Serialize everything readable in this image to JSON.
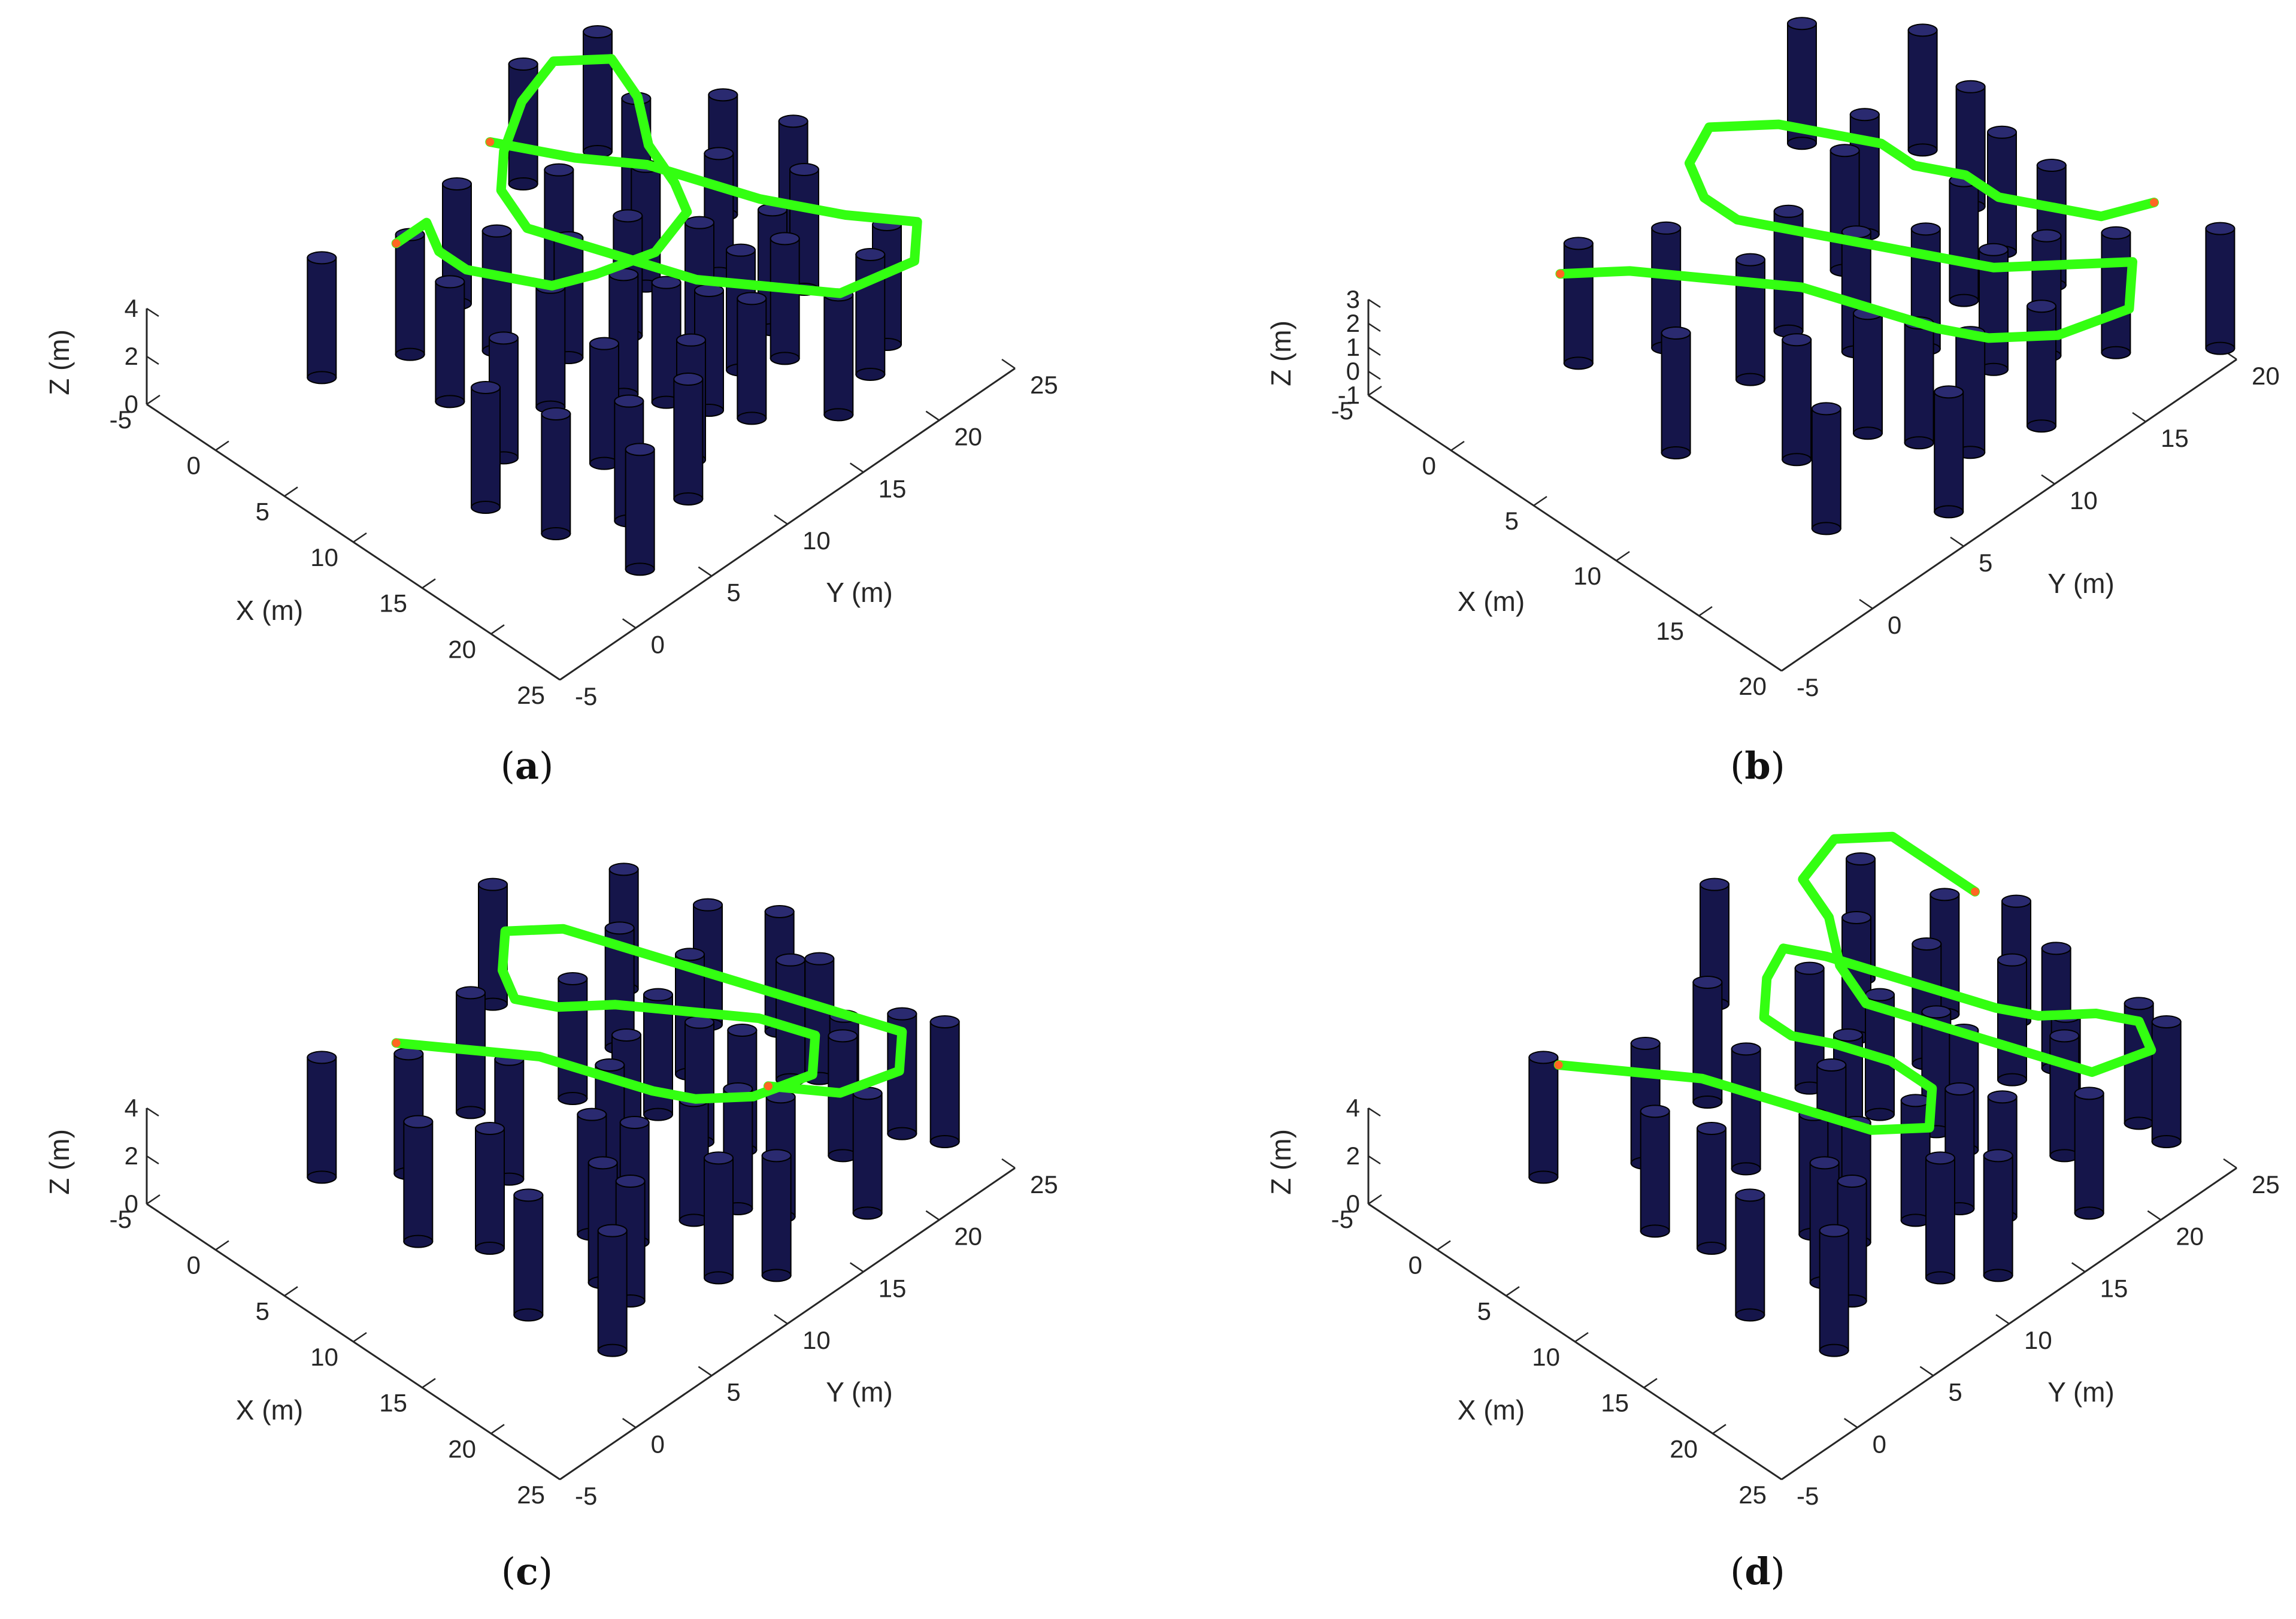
{
  "colors": {
    "pillar_fill": "#15154a",
    "pillar_stripe": "#2a2a70",
    "path_main": "#33ff11",
    "path_cool": "#22ddcc",
    "path_hot": "#ff6622",
    "axis": "#262626"
  },
  "chart_data": [
    {
      "panel": "a",
      "type": "3d-scatter-line",
      "caption_letter": "a",
      "xlabel": "X (m)",
      "ylabel": "Y (m)",
      "zlabel": "Z (m)",
      "xlim": [
        -5,
        25
      ],
      "ylim": [
        -5,
        25
      ],
      "zlim": [
        0,
        4
      ],
      "xticks": [
        "-5",
        "0",
        "5",
        "10",
        "15",
        "20",
        "25"
      ],
      "yticks": [
        "-5",
        "0",
        "5",
        "10",
        "15",
        "20",
        "25"
      ],
      "zticks": [
        "0",
        "2",
        "4"
      ],
      "obstacles_xy": [
        [
          0,
          2
        ],
        [
          2,
          6
        ],
        [
          -3,
          18
        ],
        [
          6,
          5
        ],
        [
          4,
          14
        ],
        [
          -2,
          22
        ],
        [
          1,
          10
        ],
        [
          3,
          20
        ],
        [
          7,
          17
        ],
        [
          8,
          11
        ],
        [
          10,
          8
        ],
        [
          9,
          20
        ],
        [
          12,
          16
        ],
        [
          11,
          4
        ],
        [
          13,
          22
        ],
        [
          14,
          12
        ],
        [
          15,
          7
        ],
        [
          16,
          18
        ],
        [
          17,
          2
        ],
        [
          18,
          14
        ],
        [
          19,
          22
        ],
        [
          20,
          8
        ],
        [
          21,
          17
        ],
        [
          22,
          3
        ],
        [
          14,
          19
        ],
        [
          6,
          23
        ],
        [
          10,
          24
        ],
        [
          5,
          9
        ],
        [
          12,
          11
        ],
        [
          16,
          13
        ],
        [
          18,
          10
        ],
        [
          20,
          20
        ],
        [
          13,
          1
        ],
        [
          9,
          14
        ],
        [
          15,
          16
        ],
        [
          19,
          5
        ]
      ],
      "path_xyz": [
        [
          -1,
          14,
          2
        ],
        [
          3,
          16,
          2
        ],
        [
          6,
          18,
          2
        ],
        [
          9,
          19,
          2
        ],
        [
          12,
          20,
          2
        ],
        [
          14,
          21,
          2
        ],
        [
          16,
          22,
          2
        ],
        [
          19,
          24,
          2
        ],
        [
          21,
          22,
          2
        ],
        [
          20,
          18,
          2
        ],
        [
          17,
          16,
          2
        ],
        [
          14,
          14,
          2
        ],
        [
          11,
          13,
          2
        ],
        [
          8,
          12,
          2
        ],
        [
          5,
          11,
          2
        ],
        [
          2,
          12,
          2
        ],
        [
          0,
          14,
          2
        ],
        [
          -2,
          17,
          2
        ],
        [
          -3,
          20,
          2
        ],
        [
          -1,
          22,
          2
        ],
        [
          2,
          21,
          2
        ],
        [
          5,
          19,
          2
        ],
        [
          8,
          18,
          2
        ],
        [
          10,
          17,
          2
        ],
        [
          11,
          14,
          2
        ],
        [
          10,
          11,
          2
        ],
        [
          9,
          9,
          2
        ],
        [
          7,
          8,
          2
        ],
        [
          5,
          7,
          2
        ],
        [
          3,
          7,
          2
        ],
        [
          1,
          8,
          2
        ],
        [
          1,
          6,
          2
        ]
      ]
    },
    {
      "panel": "b",
      "type": "3d-scatter-line",
      "caption_letter": "b",
      "xlabel": "X (m)",
      "ylabel": "Y (m)",
      "zlabel": "Z (m)",
      "xlim": [
        -5,
        20
      ],
      "ylim": [
        -5,
        20
      ],
      "zlim": [
        -1,
        3
      ],
      "xticks": [
        "-5",
        "0",
        "5",
        "10",
        "15",
        "20"
      ],
      "yticks": [
        "-5",
        "0",
        "5",
        "10",
        "15",
        "20"
      ],
      "zticks": [
        "-1",
        "0",
        "1",
        "2",
        "3"
      ],
      "obstacles_xy": [
        [
          0,
          2
        ],
        [
          2,
          5
        ],
        [
          -3,
          17
        ],
        [
          5,
          9
        ],
        [
          4,
          13
        ],
        [
          1,
          20
        ],
        [
          6,
          6
        ],
        [
          8,
          10
        ],
        [
          9,
          15
        ],
        [
          11,
          4
        ],
        [
          11,
          18
        ],
        [
          13,
          13
        ],
        [
          14,
          8
        ],
        [
          15,
          2
        ],
        [
          16,
          17
        ],
        [
          17,
          12
        ],
        [
          18,
          6
        ],
        [
          19,
          20
        ],
        [
          7,
          1
        ],
        [
          10,
          12
        ],
        [
          12,
          7
        ],
        [
          3,
          15
        ],
        [
          14,
          15
        ],
        [
          8,
          18
        ],
        [
          16,
          9
        ],
        [
          5,
          19
        ]
      ],
      "path_xyz": [
        [
          0,
          1,
          1
        ],
        [
          2,
          3,
          1
        ],
        [
          5,
          5,
          1
        ],
        [
          8,
          7,
          1
        ],
        [
          11,
          8,
          1
        ],
        [
          14,
          9,
          1
        ],
        [
          16,
          10,
          1
        ],
        [
          18,
          12,
          1
        ],
        [
          19,
          15,
          1
        ],
        [
          17,
          17,
          1
        ],
        [
          15,
          15,
          1
        ],
        [
          13,
          13,
          1
        ],
        [
          11,
          12,
          1
        ],
        [
          9,
          11,
          1
        ],
        [
          7,
          10,
          1
        ],
        [
          5,
          9,
          1
        ],
        [
          3,
          8,
          1
        ],
        [
          1,
          8,
          1
        ],
        [
          -1,
          9,
          1
        ],
        [
          -2,
          11,
          1
        ],
        [
          0,
          13,
          1
        ],
        [
          2,
          14,
          1
        ],
        [
          4,
          15,
          1
        ],
        [
          6,
          15,
          1
        ],
        [
          8,
          16,
          1
        ],
        [
          10,
          16,
          1
        ],
        [
          12,
          17,
          1
        ],
        [
          14,
          18,
          1
        ],
        [
          15,
          20,
          1
        ]
      ]
    },
    {
      "panel": "c",
      "type": "3d-scatter-line",
      "caption_letter": "c",
      "xlabel": "X (m)",
      "ylabel": "Y (m)",
      "zlabel": "Z (m)",
      "xlim": [
        -5,
        25
      ],
      "ylim": [
        -5,
        25
      ],
      "zlim": [
        0,
        4
      ],
      "xticks": [
        "-5",
        "0",
        "5",
        "10",
        "15",
        "20",
        "25"
      ],
      "yticks": [
        "-5",
        "0",
        "5",
        "10",
        "15",
        "20",
        "25"
      ],
      "zticks": [
        "0",
        "2",
        "4"
      ],
      "obstacles_xy": [
        [
          0,
          2
        ],
        [
          3,
          5
        ],
        [
          -3,
          16
        ],
        [
          2,
          10
        ],
        [
          5,
          14
        ],
        [
          7,
          8
        ],
        [
          8,
          19
        ],
        [
          10,
          4
        ],
        [
          10,
          13
        ],
        [
          12,
          22
        ],
        [
          13,
          8
        ],
        [
          14,
          17
        ],
        [
          15,
          2
        ],
        [
          16,
          12
        ],
        [
          17,
          21
        ],
        [
          18,
          6
        ],
        [
          19,
          15
        ],
        [
          20,
          10
        ],
        [
          21,
          24
        ],
        [
          22,
          18
        ],
        [
          6,
          22
        ],
        [
          9,
          24
        ],
        [
          12,
          16
        ],
        [
          15,
          9
        ],
        [
          4,
          18
        ],
        [
          11,
          11
        ],
        [
          18,
          20
        ],
        [
          20,
          3
        ],
        [
          1,
          21
        ],
        [
          13,
          23
        ],
        [
          17,
          14
        ],
        [
          22,
          12
        ],
        [
          7,
          2
        ],
        [
          16,
          6
        ],
        [
          9,
          16
        ],
        [
          19,
          23
        ]
      ],
      "path_xyz": [
        [
          1,
          6,
          2
        ],
        [
          4,
          8,
          2
        ],
        [
          7,
          10,
          2
        ],
        [
          10,
          11,
          2
        ],
        [
          13,
          12,
          2
        ],
        [
          15,
          13,
          2
        ],
        [
          17,
          15,
          2
        ],
        [
          18,
          18,
          2
        ],
        [
          16,
          20,
          2
        ],
        [
          13,
          19,
          2
        ],
        [
          10,
          17,
          2
        ],
        [
          7,
          15,
          2
        ],
        [
          5,
          13,
          2
        ],
        [
          3,
          12,
          2
        ],
        [
          1,
          13,
          2
        ],
        [
          -1,
          15,
          2
        ],
        [
          1,
          17,
          2
        ],
        [
          4,
          18,
          2
        ],
        [
          7,
          19,
          2
        ],
        [
          10,
          20,
          2
        ],
        [
          13,
          21,
          2
        ],
        [
          16,
          22,
          2
        ],
        [
          19,
          23,
          2
        ],
        [
          21,
          21,
          2
        ],
        [
          20,
          18,
          2
        ],
        [
          17,
          16,
          2
        ]
      ]
    },
    {
      "panel": "d",
      "type": "3d-scatter-line",
      "caption_letter": "d",
      "xlabel": "X (m)",
      "ylabel": "Y (m)",
      "zlabel": "Z (m)",
      "xlim": [
        -5,
        25
      ],
      "ylim": [
        -5,
        25
      ],
      "zlim": [
        0,
        4
      ],
      "xticks": [
        "-5",
        "0",
        "5",
        "10",
        "15",
        "20",
        "25"
      ],
      "yticks": [
        "-5",
        "0",
        "5",
        "10",
        "15",
        "20",
        "25"
      ],
      "zticks": [
        "0",
        "2",
        "4"
      ],
      "obstacles_xy": [
        [
          0,
          2
        ],
        [
          3,
          6
        ],
        [
          -3,
          16
        ],
        [
          2,
          11
        ],
        [
          5,
          15
        ],
        [
          7,
          9
        ],
        [
          8,
          20
        ],
        [
          10,
          4
        ],
        [
          10,
          13
        ],
        [
          12,
          22
        ],
        [
          13,
          8
        ],
        [
          14,
          17
        ],
        [
          15,
          2
        ],
        [
          16,
          12
        ],
        [
          17,
          21
        ],
        [
          18,
          6
        ],
        [
          19,
          15
        ],
        [
          20,
          10
        ],
        [
          21,
          24
        ],
        [
          22,
          18
        ],
        [
          6,
          23
        ],
        [
          9,
          25
        ],
        [
          12,
          17
        ],
        [
          15,
          9
        ],
        [
          4,
          19
        ],
        [
          11,
          11
        ],
        [
          18,
          20
        ],
        [
          20,
          3
        ],
        [
          1,
          22
        ],
        [
          13,
          24
        ],
        [
          17,
          14
        ],
        [
          22,
          12
        ],
        [
          7,
          3
        ],
        [
          16,
          6
        ],
        [
          9,
          16
        ],
        [
          19,
          24
        ]
      ],
      "path_xyz": [
        [
          0,
          3,
          2
        ],
        [
          3,
          5,
          2
        ],
        [
          6,
          7,
          2
        ],
        [
          9,
          8,
          2
        ],
        [
          12,
          9,
          2
        ],
        [
          15,
          10,
          2
        ],
        [
          17,
          12,
          2
        ],
        [
          15,
          14,
          2
        ],
        [
          12,
          14,
          2
        ],
        [
          9,
          13,
          2
        ],
        [
          7,
          12,
          2
        ],
        [
          5,
          12,
          2
        ],
        [
          3,
          14,
          2
        ],
        [
          2,
          16,
          2
        ],
        [
          4,
          17,
          2
        ],
        [
          7,
          18,
          2
        ],
        [
          10,
          19,
          2
        ],
        [
          13,
          20,
          2
        ],
        [
          15,
          21,
          2
        ],
        [
          17,
          23,
          2
        ],
        [
          19,
          24,
          2
        ],
        [
          21,
          23,
          2
        ],
        [
          20,
          20,
          2
        ],
        [
          17,
          19,
          2
        ],
        [
          14,
          18,
          2
        ],
        [
          11,
          17,
          2
        ],
        [
          8,
          16,
          2
        ],
        [
          5,
          17,
          2
        ],
        [
          2,
          19,
          2
        ],
        [
          -1,
          20,
          2
        ],
        [
          -2,
          23,
          2
        ],
        [
          0,
          25,
          2
        ],
        [
          3,
          25,
          2
        ],
        [
          6,
          25,
          2
        ]
      ]
    }
  ]
}
